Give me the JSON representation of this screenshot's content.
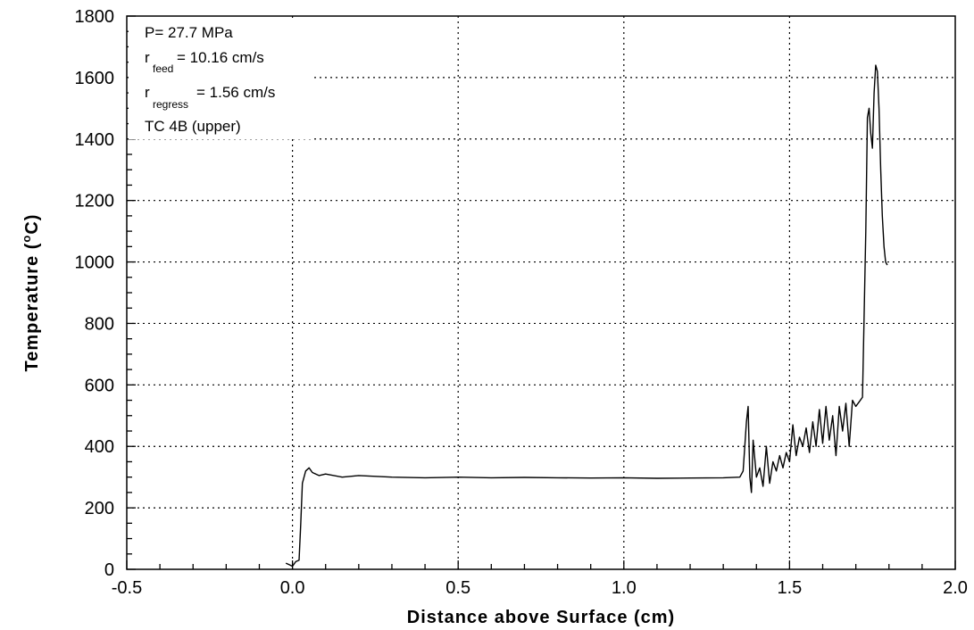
{
  "chart_data": {
    "type": "line",
    "xlabel": "Distance above Surface (cm)",
    "ylabel_main": "Temperature (",
    "ylabel_sup": "o",
    "ylabel_end": "C)",
    "xlim": [
      -0.5,
      2.0
    ],
    "ylim": [
      0,
      1800
    ],
    "x_ticks": [
      -0.5,
      0.0,
      0.5,
      1.0,
      1.5,
      2.0
    ],
    "x_tick_labels": [
      "-0.5",
      "0.0",
      "0.5",
      "1.0",
      "1.5",
      "2.0"
    ],
    "y_ticks": [
      0,
      200,
      400,
      600,
      800,
      1000,
      1200,
      1400,
      1600,
      1800
    ],
    "y_tick_labels": [
      "0",
      "200",
      "400",
      "600",
      "800",
      "1000",
      "1200",
      "1400",
      "1600",
      "1800"
    ],
    "grid": "dotted",
    "annotation": {
      "line1": "P= 27.7 MPa",
      "r_feed_main": "r",
      "r_feed_sub": "feed",
      "r_feed_value": "= 10.16 cm/s",
      "r_regress_main": "r",
      "r_regress_sub": "regress",
      "r_regress_value": "= 1.56 cm/s",
      "line4": "TC 4B (upper)"
    },
    "series": [
      {
        "x": [
          -0.02,
          -0.01,
          0.0,
          0.01,
          0.02,
          0.025,
          0.03,
          0.04,
          0.05,
          0.06,
          0.08,
          0.1,
          0.15,
          0.2,
          0.3,
          0.4,
          0.5,
          0.6,
          0.7,
          0.8,
          0.9,
          1.0,
          1.1,
          1.2,
          1.3,
          1.35,
          1.36,
          1.37,
          1.375,
          1.38,
          1.385,
          1.39,
          1.4,
          1.41,
          1.42,
          1.43,
          1.44,
          1.45,
          1.46,
          1.47,
          1.48,
          1.49,
          1.5,
          1.51,
          1.52,
          1.53,
          1.54,
          1.55,
          1.56,
          1.57,
          1.58,
          1.59,
          1.6,
          1.61,
          1.62,
          1.63,
          1.64,
          1.65,
          1.66,
          1.67,
          1.68,
          1.69,
          1.7,
          1.71,
          1.72,
          1.73,
          1.735,
          1.74,
          1.745,
          1.75,
          1.755,
          1.76,
          1.765,
          1.77,
          1.775,
          1.78,
          1.785,
          1.79,
          1.795
        ],
        "y": [
          20,
          15,
          10,
          25,
          30,
          150,
          280,
          320,
          330,
          315,
          305,
          310,
          300,
          305,
          300,
          298,
          300,
          298,
          299,
          298,
          297,
          298,
          296,
          297,
          298,
          300,
          320,
          480,
          530,
          300,
          250,
          420,
          300,
          330,
          270,
          400,
          280,
          350,
          320,
          370,
          330,
          380,
          350,
          470,
          370,
          430,
          400,
          460,
          380,
          480,
          400,
          520,
          410,
          530,
          420,
          500,
          370,
          530,
          450,
          540,
          400,
          550,
          530,
          545,
          560,
          1100,
          1470,
          1500,
          1420,
          1370,
          1550,
          1640,
          1620,
          1500,
          1300,
          1150,
          1050,
          1000,
          990
        ]
      }
    ]
  }
}
